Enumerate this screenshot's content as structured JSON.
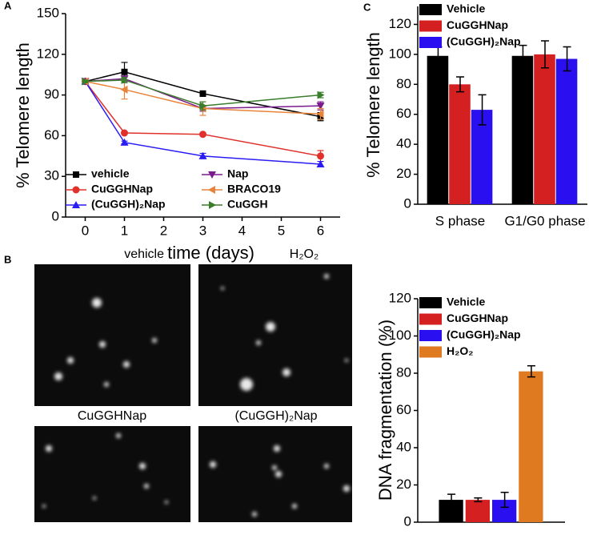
{
  "chart_data": [
    {
      "type": "line",
      "panel_label": "A",
      "xlabel": "time (days)",
      "ylabel": "% Telomere length",
      "x": [
        0,
        1,
        3,
        6
      ],
      "xlim": [
        -0.5,
        6.5
      ],
      "xticks": [
        0,
        1,
        2,
        3,
        4,
        5,
        6
      ],
      "ylim": [
        0,
        150
      ],
      "yticks": [
        0,
        30,
        60,
        90,
        120,
        150
      ],
      "legend": "lower left",
      "series": [
        {
          "name": "vehicle",
          "color": "#000000",
          "marker": "square",
          "values": [
            100,
            107,
            91,
            74
          ],
          "errors": [
            1,
            7,
            2,
            3
          ]
        },
        {
          "name": "CuGGHNap",
          "color": "#e0312b",
          "marker": "circle",
          "values": [
            100,
            62,
            61,
            45
          ],
          "errors": [
            1,
            1,
            1,
            4
          ]
        },
        {
          "name": "(CuGGH)₂Nap",
          "color": "#2a1cf5",
          "marker": "triangle-up",
          "values": [
            100,
            55,
            45,
            39
          ],
          "errors": [
            1,
            1,
            2,
            2
          ]
        },
        {
          "name": "Nap",
          "color": "#7b1a8c",
          "marker": "triangle-down",
          "values": [
            100,
            102,
            80,
            82
          ],
          "errors": [
            1,
            2,
            2,
            3
          ]
        },
        {
          "name": "BRACO19",
          "color": "#e8833a",
          "marker": "triangle-left",
          "values": [
            100,
            94,
            80,
            76
          ],
          "errors": [
            1,
            7,
            5,
            4
          ]
        },
        {
          "name": "CuGGH",
          "color": "#3a7d2a",
          "marker": "triangle-right",
          "values": [
            100,
            101,
            82,
            90
          ],
          "errors": [
            1,
            2,
            3,
            2
          ]
        }
      ]
    },
    {
      "type": "bar",
      "panel_label": "C",
      "ylabel": "% Telomere length",
      "categories": [
        "S phase",
        "G1/G0 phase"
      ],
      "ylim": [
        0,
        132
      ],
      "yticks": [
        0,
        20,
        40,
        60,
        80,
        100,
        120
      ],
      "legend": "upper left",
      "series": [
        {
          "name": "Vehicle",
          "color": "#000000",
          "values": [
            99,
            99
          ],
          "errors": [
            6,
            7
          ]
        },
        {
          "name": "CuGGHNap",
          "color": "#d42020",
          "values": [
            80,
            100
          ],
          "errors": [
            5,
            9
          ]
        },
        {
          "name": "(CuGGH)₂Nap",
          "color": "#2a10f0",
          "values": [
            63,
            97
          ],
          "errors": [
            10,
            8
          ]
        }
      ]
    },
    {
      "type": "bar",
      "panel_label": "B",
      "ylabel": "DNA fragmentation (%)",
      "categories": [
        null
      ],
      "ylim": [
        0,
        120
      ],
      "yticks": [
        0,
        20,
        40,
        60,
        80,
        100,
        120
      ],
      "legend": "upper left",
      "series": [
        {
          "name": "Vehicle",
          "color": "#000000",
          "values": [
            12
          ],
          "errors": [
            3
          ]
        },
        {
          "name": "CuGGHNap",
          "color": "#d42020",
          "values": [
            12
          ],
          "errors": [
            1
          ]
        },
        {
          "name": "(CuGGH)₂Nap",
          "color": "#2a10f0",
          "values": [
            12
          ],
          "errors": [
            4
          ]
        },
        {
          "name": "H₂O₂",
          "color": "#e07a20",
          "values": [
            81
          ],
          "errors": [
            3
          ]
        }
      ]
    }
  ],
  "micrographs": [
    "vehicle",
    "H₂O₂",
    "CuGGHNap",
    "(CuGGH)₂Nap"
  ]
}
